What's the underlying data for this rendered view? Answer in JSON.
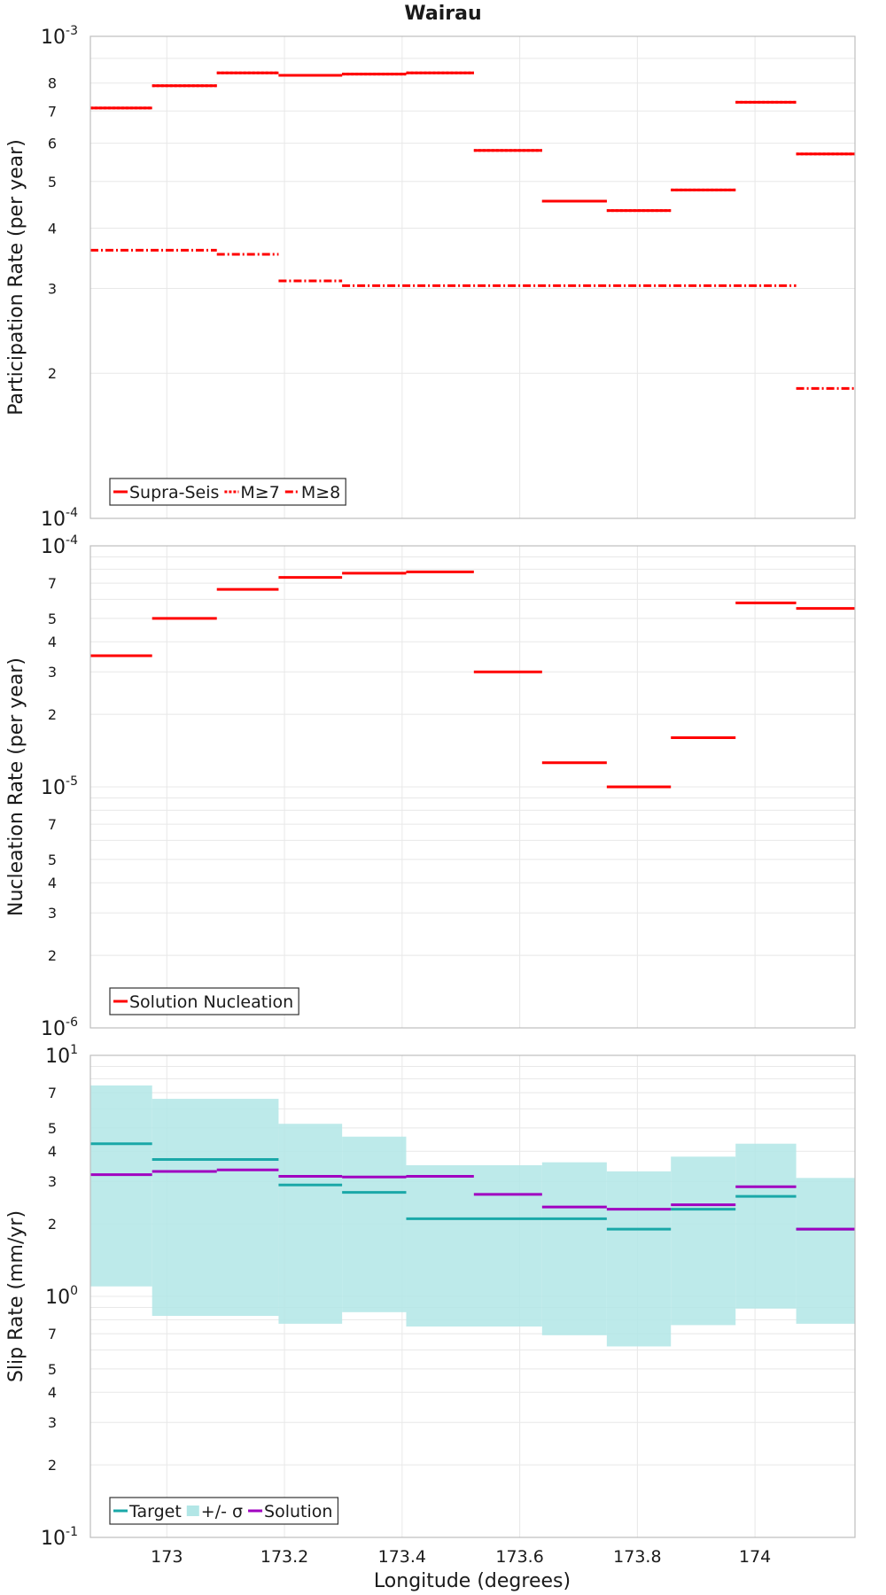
{
  "chart_data": [
    {
      "type": "line",
      "title": "Wairau",
      "xlabel": "",
      "ylabel": "Participation Rate (per year)",
      "yscale": "log",
      "ylim": [
        0.0001,
        0.001
      ],
      "xlim": [
        172.87,
        174.17
      ],
      "xticks": [
        "173",
        "173.2",
        "173.4",
        "173.6",
        "173.8",
        "174"
      ],
      "major_tick_labels": [
        {
          "base": "10",
          "exp": "-3",
          "value": 0.001
        },
        {
          "base": "10",
          "exp": "-4",
          "value": 0.0001
        }
      ],
      "minor_tick_labels": [
        {
          "label": "8",
          "value": 0.0008
        },
        {
          "label": "7",
          "value": 0.0007
        },
        {
          "label": "6",
          "value": 0.0006
        },
        {
          "label": "5",
          "value": 0.0005
        },
        {
          "label": "4",
          "value": 0.0004
        },
        {
          "label": "3",
          "value": 0.0003
        },
        {
          "label": "2",
          "value": 0.0002
        }
      ],
      "grid": true,
      "legend_position": "bottom-left",
      "series": [
        {
          "name": "Supra-Seis",
          "color": "#ff0000",
          "style": "solid",
          "segments": [
            {
              "x": [
                172.87,
                172.975
              ],
              "y": 0.00071
            },
            {
              "x": [
                172.975,
                173.085
              ],
              "y": 0.00079
            },
            {
              "x": [
                173.085,
                173.19
              ],
              "y": 0.00084
            },
            {
              "x": [
                173.19,
                173.298
              ],
              "y": 0.00083
            },
            {
              "x": [
                173.298,
                173.407
              ],
              "y": 0.000835
            },
            {
              "x": [
                173.407,
                173.522
              ],
              "y": 0.00084
            },
            {
              "x": [
                173.522,
                173.638
              ],
              "y": 0.00058
            },
            {
              "x": [
                173.638,
                173.748
              ],
              "y": 0.000455
            },
            {
              "x": [
                173.748,
                173.857
              ],
              "y": 0.000435
            },
            {
              "x": [
                173.857,
                173.967
              ],
              "y": 0.00048
            },
            {
              "x": [
                173.967,
                174.07
              ],
              "y": 0.00073
            },
            {
              "x": [
                174.07,
                174.17
              ],
              "y": 0.00057
            }
          ]
        },
        {
          "name": "M≥7",
          "color": "#ff0000",
          "style": "dotted",
          "segments": [
            {
              "x": [
                172.87,
                172.975
              ],
              "y": 0.00071
            },
            {
              "x": [
                172.975,
                173.085
              ],
              "y": 0.00079
            },
            {
              "x": [
                173.085,
                173.19
              ],
              "y": 0.00084
            },
            {
              "x": [
                173.19,
                173.298
              ],
              "y": 0.00083
            },
            {
              "x": [
                173.298,
                173.407
              ],
              "y": 0.000835
            },
            {
              "x": [
                173.407,
                173.522
              ],
              "y": 0.00084
            },
            {
              "x": [
                173.522,
                173.638
              ],
              "y": 0.00058
            },
            {
              "x": [
                173.638,
                173.748
              ],
              "y": 0.000455
            },
            {
              "x": [
                173.748,
                173.857
              ],
              "y": 0.000435
            },
            {
              "x": [
                173.857,
                173.967
              ],
              "y": 0.00048
            },
            {
              "x": [
                173.967,
                174.07
              ],
              "y": 0.00073
            },
            {
              "x": [
                174.07,
                174.17
              ],
              "y": 0.00057
            }
          ]
        },
        {
          "name": "M≥8",
          "color": "#ff0000",
          "style": "dashdot",
          "segments": [
            {
              "x": [
                172.87,
                173.085
              ],
              "y": 0.00036
            },
            {
              "x": [
                173.085,
                173.19
              ],
              "y": 0.000353
            },
            {
              "x": [
                173.19,
                173.298
              ],
              "y": 0.000311
            },
            {
              "x": [
                173.298,
                174.07
              ],
              "y": 0.000304
            },
            {
              "x": [
                174.07,
                174.17
              ],
              "y": 0.000186
            }
          ]
        }
      ]
    },
    {
      "type": "line",
      "title": "",
      "xlabel": "",
      "ylabel": "Nucleation Rate (per year)",
      "yscale": "log",
      "ylim": [
        1e-06,
        0.0001
      ],
      "xlim": [
        172.87,
        174.17
      ],
      "major_tick_labels": [
        {
          "base": "10",
          "exp": "-4",
          "value": 0.0001
        },
        {
          "base": "10",
          "exp": "-5",
          "value": 1e-05
        },
        {
          "base": "10",
          "exp": "-6",
          "value": 1e-06
        }
      ],
      "minor_tick_labels": [
        {
          "label": "7",
          "value": 7e-05
        },
        {
          "label": "5",
          "value": 5e-05
        },
        {
          "label": "4",
          "value": 4e-05
        },
        {
          "label": "3",
          "value": 3e-05
        },
        {
          "label": "2",
          "value": 2e-05
        },
        {
          "label": "7",
          "value": 7e-06
        },
        {
          "label": "5",
          "value": 5e-06
        },
        {
          "label": "4",
          "value": 4e-06
        },
        {
          "label": "3",
          "value": 3e-06
        },
        {
          "label": "2",
          "value": 2e-06
        }
      ],
      "grid": true,
      "legend_position": "bottom-left",
      "series": [
        {
          "name": "Solution Nucleation",
          "color": "#ff0000",
          "style": "solid",
          "segments": [
            {
              "x": [
                172.87,
                172.975
              ],
              "y": 3.5e-05
            },
            {
              "x": [
                172.975,
                173.085
              ],
              "y": 5e-05
            },
            {
              "x": [
                173.085,
                173.19
              ],
              "y": 6.6e-05
            },
            {
              "x": [
                173.19,
                173.298
              ],
              "y": 7.4e-05
            },
            {
              "x": [
                173.298,
                173.407
              ],
              "y": 7.7e-05
            },
            {
              "x": [
                173.407,
                173.522
              ],
              "y": 7.8e-05
            },
            {
              "x": [
                173.522,
                173.638
              ],
              "y": 3e-05
            },
            {
              "x": [
                173.638,
                173.748
              ],
              "y": 1.26e-05
            },
            {
              "x": [
                173.748,
                173.857
              ],
              "y": 1e-05
            },
            {
              "x": [
                173.857,
                173.967
              ],
              "y": 1.6e-05
            },
            {
              "x": [
                173.967,
                174.07
              ],
              "y": 5.8e-05
            },
            {
              "x": [
                174.07,
                174.17
              ],
              "y": 5.5e-05
            }
          ]
        }
      ]
    },
    {
      "type": "line",
      "title": "",
      "xlabel": "Longitude (degrees)",
      "ylabel": "Slip Rate (mm/yr)",
      "yscale": "log",
      "ylim": [
        0.1,
        10
      ],
      "xlim": [
        172.87,
        174.17
      ],
      "xticks": [
        "173",
        "173.2",
        "173.4",
        "173.6",
        "173.8",
        "174"
      ],
      "xtick_values": [
        173,
        173.2,
        173.4,
        173.6,
        173.8,
        174
      ],
      "major_tick_labels": [
        {
          "base": "10",
          "exp": "1",
          "value": 10
        },
        {
          "base": "10",
          "exp": "0",
          "value": 1
        },
        {
          "base": "10",
          "exp": "-1",
          "value": 0.1
        }
      ],
      "minor_tick_labels": [
        {
          "label": "7",
          "value": 7
        },
        {
          "label": "5",
          "value": 5
        },
        {
          "label": "4",
          "value": 4
        },
        {
          "label": "3",
          "value": 3
        },
        {
          "label": "2",
          "value": 2
        },
        {
          "label": "7",
          "value": 0.7
        },
        {
          "label": "5",
          "value": 0.5
        },
        {
          "label": "4",
          "value": 0.4
        },
        {
          "label": "3",
          "value": 0.3
        },
        {
          "label": "2",
          "value": 0.2
        }
      ],
      "grid": true,
      "legend_position": "bottom-left",
      "band": {
        "name": "+/- σ",
        "color": "#b2e6e6",
        "segments": [
          {
            "x": [
              172.87,
              172.975
            ],
            "low": 1.1,
            "high": 7.5
          },
          {
            "x": [
              172.975,
              173.19
            ],
            "low": 0.83,
            "high": 6.6
          },
          {
            "x": [
              173.19,
              173.298
            ],
            "low": 0.77,
            "high": 5.2
          },
          {
            "x": [
              173.298,
              173.407
            ],
            "low": 0.86,
            "high": 4.6
          },
          {
            "x": [
              173.407,
              173.638
            ],
            "low": 0.75,
            "high": 3.5
          },
          {
            "x": [
              173.638,
              173.748
            ],
            "low": 0.69,
            "high": 3.6
          },
          {
            "x": [
              173.748,
              173.857
            ],
            "low": 0.62,
            "high": 3.3
          },
          {
            "x": [
              173.857,
              173.967
            ],
            "low": 0.76,
            "high": 3.8
          },
          {
            "x": [
              173.967,
              174.07
            ],
            "low": 0.89,
            "high": 4.3
          },
          {
            "x": [
              174.07,
              174.17
            ],
            "low": 0.77,
            "high": 3.1
          }
        ]
      },
      "series": [
        {
          "name": "Target",
          "color": "#1aa8a8",
          "style": "solid",
          "segments": [
            {
              "x": [
                172.87,
                172.975
              ],
              "y": 4.3
            },
            {
              "x": [
                172.975,
                173.19
              ],
              "y": 3.7
            },
            {
              "x": [
                173.19,
                173.298
              ],
              "y": 2.9
            },
            {
              "x": [
                173.298,
                173.407
              ],
              "y": 2.7
            },
            {
              "x": [
                173.407,
                173.748
              ],
              "y": 2.1
            },
            {
              "x": [
                173.748,
                173.857
              ],
              "y": 1.9
            },
            {
              "x": [
                173.857,
                173.967
              ],
              "y": 2.3
            },
            {
              "x": [
                173.967,
                174.07
              ],
              "y": 2.6
            },
            {
              "x": [
                174.07,
                174.17
              ],
              "y": 1.9
            }
          ]
        },
        {
          "name": "Solution",
          "color": "#a000c0",
          "style": "solid",
          "segments": [
            {
              "x": [
                172.87,
                172.975
              ],
              "y": 3.2
            },
            {
              "x": [
                172.975,
                173.085
              ],
              "y": 3.3
            },
            {
              "x": [
                173.085,
                173.19
              ],
              "y": 3.35
            },
            {
              "x": [
                173.19,
                173.298
              ],
              "y": 3.15
            },
            {
              "x": [
                173.298,
                173.407
              ],
              "y": 3.13
            },
            {
              "x": [
                173.407,
                173.522
              ],
              "y": 3.15
            },
            {
              "x": [
                173.522,
                173.638
              ],
              "y": 2.65
            },
            {
              "x": [
                173.638,
                173.748
              ],
              "y": 2.35
            },
            {
              "x": [
                173.748,
                173.857
              ],
              "y": 2.3
            },
            {
              "x": [
                173.857,
                173.967
              ],
              "y": 2.4
            },
            {
              "x": [
                173.967,
                174.07
              ],
              "y": 2.85
            },
            {
              "x": [
                174.07,
                174.17
              ],
              "y": 1.9
            }
          ]
        }
      ]
    }
  ]
}
